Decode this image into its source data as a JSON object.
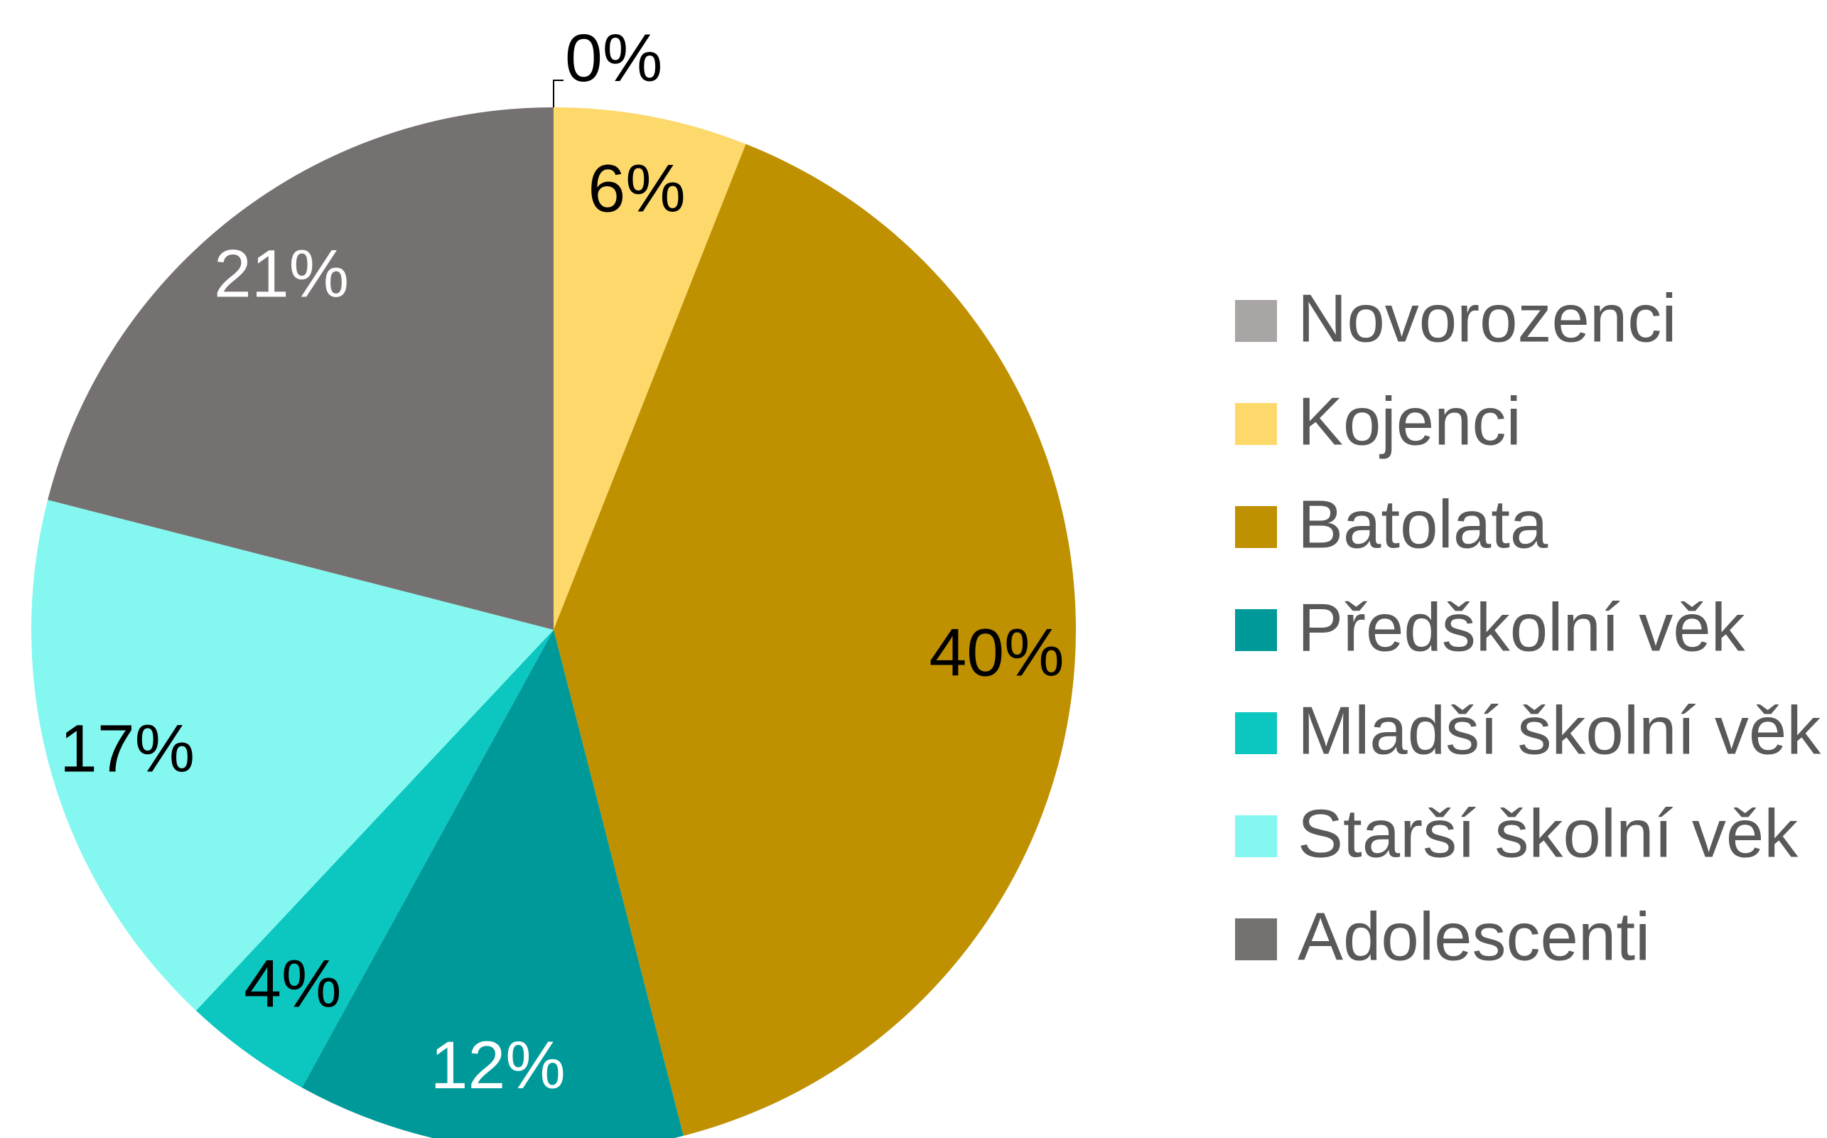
{
  "chart_data": {
    "type": "pie",
    "categories": [
      "Novorozenci",
      "Kojenci",
      "Batolata",
      "Předškolní věk",
      "Mladší školní věk",
      "Starší školní věk",
      "Adolescenti"
    ],
    "values": [
      0,
      6,
      40,
      12,
      4,
      17,
      21
    ],
    "value_labels": [
      "0%",
      "6%",
      "40%",
      "12%",
      "4%",
      "17%",
      "21%"
    ],
    "colors": [
      "#a9a5a5",
      "#fdd96b",
      "#bf9000",
      "#009999",
      "#0cc6c0",
      "#84f8f0",
      "#767171"
    ],
    "legend": "right"
  }
}
